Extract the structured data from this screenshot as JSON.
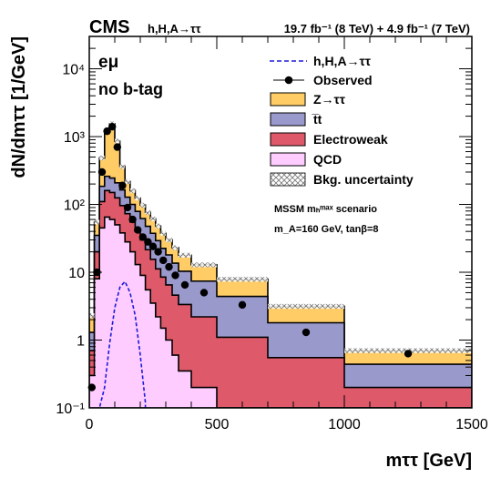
{
  "chart_data": {
    "type": "histogram-stacked",
    "experiment": "CMS",
    "process": "h,H,A→ττ",
    "lumi": "19.7 fb⁻¹ (8 TeV) + 4.9 fb⁻¹ (7 TeV)",
    "channel": "eμ",
    "category": "no b-tag",
    "xlabel": "mττ [GeV]",
    "ylabel": "dN/dmττ [1/GeV]",
    "xlim": [
      0,
      1500
    ],
    "ylim": [
      0.1,
      30000
    ],
    "yscale": "log",
    "x_ticks": [
      "0",
      "500",
      "1000",
      "1500"
    ],
    "y_ticks": [
      {
        "v": 0.1,
        "label": "10⁻¹"
      },
      {
        "v": 1,
        "label": "1"
      },
      {
        "v": 10,
        "label": "10"
      },
      {
        "v": 100,
        "label": "10²"
      },
      {
        "v": 1000,
        "label": "10³"
      },
      {
        "v": 10000,
        "label": "10⁴"
      }
    ],
    "scenario_line1": "MSSM mₕᵐᵃˣ scenario",
    "scenario_line2": "m_A=160 GeV, tanβ=8",
    "legend_position": "top-right",
    "bin_edges": [
      0,
      20,
      40,
      60,
      80,
      100,
      120,
      140,
      160,
      180,
      200,
      220,
      240,
      260,
      280,
      300,
      325,
      350,
      400,
      500,
      700,
      1000,
      1500
    ],
    "series": [
      {
        "name": "QCD",
        "color": "#ffccff",
        "values": [
          0.3,
          8,
          45,
          65,
          60,
          50,
          38,
          28,
          20,
          13,
          9,
          5.5,
          3.5,
          2.2,
          1.5,
          1,
          0.6,
          0.35,
          0.2,
          0.1,
          0.1,
          0.1
        ]
      },
      {
        "name": "Electroweak",
        "color": "#de5a6a",
        "values": [
          0.4,
          12,
          65,
          95,
          90,
          75,
          58,
          45,
          35,
          28,
          21,
          16,
          12,
          9,
          7,
          5.5,
          4,
          3,
          2,
          1,
          0.45,
          0.1
        ]
      },
      {
        "name": "t̅t",
        "color": "#9999cc",
        "values": [
          0.6,
          15,
          75,
          100,
          95,
          83,
          68,
          55,
          45,
          38,
          32,
          26,
          22,
          18,
          14,
          11.5,
          9,
          7,
          5.2,
          3.3,
          1.25,
          0.24
        ]
      },
      {
        "name": "Z→ττ",
        "color": "#ffcc66",
        "values": [
          1,
          20,
          300,
          1000,
          1300,
          650,
          200,
          90,
          60,
          45,
          36,
          29,
          24,
          19,
          15,
          12,
          9.5,
          7.5,
          5.5,
          3.5,
          1.35,
          0.26
        ]
      }
    ],
    "observed": {
      "name": "Observed",
      "x": [
        10,
        30,
        50,
        70,
        90,
        110,
        130,
        150,
        170,
        190,
        210,
        230,
        250,
        270,
        290,
        312.5,
        337.5,
        375,
        450,
        600,
        850,
        1250
      ],
      "y": [
        0.2,
        10,
        300,
        1200,
        1400,
        700,
        190,
        90,
        60,
        42,
        33,
        28,
        24,
        20,
        15,
        12,
        9,
        6.5,
        5,
        3.3,
        1.3,
        0.63
      ]
    },
    "signal": {
      "name": "h,H,A→ττ",
      "color": "#1a1adb",
      "x": [
        40,
        60,
        80,
        100,
        120,
        140,
        160,
        180,
        200,
        220
      ],
      "y": [
        0.1,
        0.2,
        0.9,
        3,
        6,
        7.3,
        5,
        2.3,
        0.6,
        0.12
      ]
    },
    "uncertainty_name": "Bkg. uncertainty"
  }
}
